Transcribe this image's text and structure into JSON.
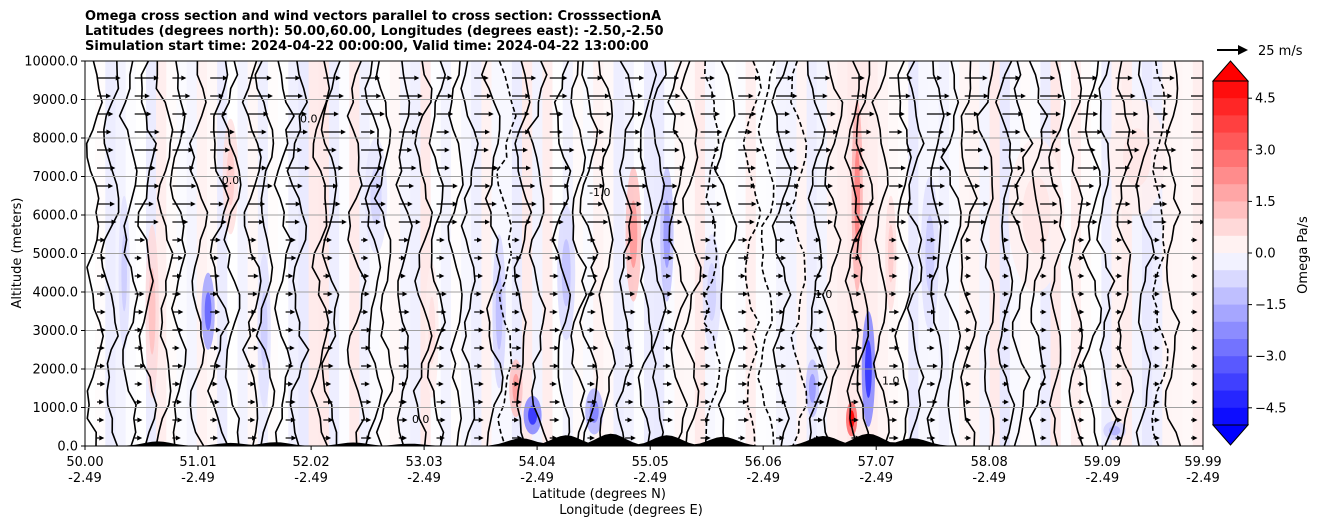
{
  "title": {
    "line1": "Omega cross section and wind vectors parallel to cross section: CrosssectionA",
    "line2": "Latitudes (degrees north): 50.00,60.00, Longitudes (degrees east): -2.50,-2.50",
    "line3": "Simulation start time: 2024-04-22 00:00:00, Valid time: 2024-04-22 13:00:00"
  },
  "wind_key_label": "25 m/s",
  "chart_data": {
    "type": "contour",
    "title": "Omega cross section and wind vectors parallel to cross section: CrosssectionA",
    "xlabel_lat": "Latitude (degrees N)",
    "xlabel_lon": "Longitude (degrees E)",
    "ylabel": "Altitude (meters)",
    "xlim": [
      50.0,
      59.99
    ],
    "ylim": [
      0,
      10000
    ],
    "x_ticks": [
      {
        "lat": "50.00",
        "lon": "-2.49",
        "value": 50.0
      },
      {
        "lat": "51.01",
        "lon": "-2.49",
        "value": 51.01
      },
      {
        "lat": "52.02",
        "lon": "-2.49",
        "value": 52.02
      },
      {
        "lat": "53.03",
        "lon": "-2.49",
        "value": 53.03
      },
      {
        "lat": "54.04",
        "lon": "-2.49",
        "value": 54.04
      },
      {
        "lat": "55.05",
        "lon": "-2.49",
        "value": 55.05
      },
      {
        "lat": "56.06",
        "lon": "-2.49",
        "value": 56.06
      },
      {
        "lat": "57.07",
        "lon": "-2.49",
        "value": 57.07
      },
      {
        "lat": "58.08",
        "lon": "-2.49",
        "value": 58.08
      },
      {
        "lat": "59.09",
        "lon": "-2.49",
        "value": 59.09
      },
      {
        "lat": "59.99",
        "lon": "-2.49",
        "value": 59.99
      }
    ],
    "y_ticks": [
      "0.0",
      "1000.0",
      "2000.0",
      "3000.0",
      "4000.0",
      "5000.0",
      "6000.0",
      "7000.0",
      "8000.0",
      "9000.0",
      "10000.0"
    ],
    "grid": "horizontal",
    "colorbar": {
      "label": "Omega Pa/s",
      "range": [
        -5.0,
        5.0
      ],
      "step": 0.5,
      "ticks": [
        "4.5",
        "3.0",
        "1.5",
        "0.0",
        "−1.5",
        "−3.0",
        "−4.5"
      ],
      "cmap": "bwr",
      "extend": "both"
    },
    "contour_levels": [
      -1.0,
      0.0,
      1.0
    ],
    "contour_labels": [
      {
        "text": "0.0",
        "x": 52.0,
        "y": 8400
      },
      {
        "text": "-1.0",
        "x": 54.6,
        "y": 6500
      },
      {
        "text": "1.0",
        "x": 56.6,
        "y": 3850
      },
      {
        "text": "1.0",
        "x": 57.2,
        "y": 1600
      },
      {
        "text": "0.0",
        "x": 53.0,
        "y": 600
      },
      {
        "text": "0.0",
        "x": 51.3,
        "y": 6800
      }
    ],
    "omega_features": [
      {
        "lat": 50.35,
        "z": 4500,
        "w": 0.05,
        "h": 4000,
        "value": -1.0
      },
      {
        "lat": 50.6,
        "z": 3500,
        "w": 0.06,
        "h": 4500,
        "value": 1.2
      },
      {
        "lat": 51.1,
        "z": 3500,
        "w": 0.06,
        "h": 2000,
        "value": -3.0
      },
      {
        "lat": 51.3,
        "z": 7000,
        "w": 0.07,
        "h": 3000,
        "value": 1.0
      },
      {
        "lat": 51.6,
        "z": 3000,
        "w": 0.06,
        "h": 4000,
        "value": -1.0
      },
      {
        "lat": 52.6,
        "z": 6500,
        "w": 0.1,
        "h": 3000,
        "value": -0.8
      },
      {
        "lat": 53.1,
        "z": 3000,
        "w": 0.06,
        "h": 3500,
        "value": 0.6
      },
      {
        "lat": 53.7,
        "z": 3500,
        "w": 0.06,
        "h": 4000,
        "value": -1.3
      },
      {
        "lat": 53.85,
        "z": 1500,
        "w": 0.06,
        "h": 1500,
        "value": 2.0
      },
      {
        "lat": 54.0,
        "z": 800,
        "w": 0.08,
        "h": 1000,
        "value": -4.0
      },
      {
        "lat": 54.3,
        "z": 4500,
        "w": 0.08,
        "h": 3500,
        "value": -1.2
      },
      {
        "lat": 54.55,
        "z": 900,
        "w": 0.08,
        "h": 1200,
        "value": -2.5
      },
      {
        "lat": 54.9,
        "z": 5500,
        "w": 0.07,
        "h": 3500,
        "value": 2.0
      },
      {
        "lat": 55.2,
        "z": 5500,
        "w": 0.06,
        "h": 3500,
        "value": -2.0
      },
      {
        "lat": 55.6,
        "z": 4000,
        "w": 0.08,
        "h": 3000,
        "value": -0.9
      },
      {
        "lat": 56.5,
        "z": 1500,
        "w": 0.06,
        "h": 1500,
        "value": -2.0
      },
      {
        "lat": 56.9,
        "z": 6500,
        "w": 0.05,
        "h": 5000,
        "value": 2.5
      },
      {
        "lat": 57.0,
        "z": 2000,
        "w": 0.06,
        "h": 3000,
        "value": -4.0
      },
      {
        "lat": 56.85,
        "z": 700,
        "w": 0.05,
        "h": 900,
        "value": 5.0
      },
      {
        "lat": 57.2,
        "z": 5000,
        "w": 0.05,
        "h": 3000,
        "value": 1.0
      },
      {
        "lat": 57.55,
        "z": 5000,
        "w": 0.08,
        "h": 4000,
        "value": -1.0
      },
      {
        "lat": 58.5,
        "z": 6000,
        "w": 0.25,
        "h": 4000,
        "value": 0.5
      },
      {
        "lat": 59.4,
        "z": 7500,
        "w": 0.25,
        "h": 3000,
        "value": 0.5
      },
      {
        "lat": 59.2,
        "z": 400,
        "w": 0.1,
        "h": 500,
        "value": -1.5
      }
    ],
    "terrain_peaks": [
      {
        "lat": 50.65,
        "height": 120
      },
      {
        "lat": 51.3,
        "height": 80
      },
      {
        "lat": 51.7,
        "height": 100
      },
      {
        "lat": 52.4,
        "height": 90
      },
      {
        "lat": 52.9,
        "height": 60
      },
      {
        "lat": 53.9,
        "height": 200
      },
      {
        "lat": 54.3,
        "height": 280
      },
      {
        "lat": 54.7,
        "height": 320
      },
      {
        "lat": 55.2,
        "height": 280
      },
      {
        "lat": 55.7,
        "height": 240
      },
      {
        "lat": 56.6,
        "height": 260
      },
      {
        "lat": 57.0,
        "height": 320
      },
      {
        "lat": 57.4,
        "height": 200
      }
    ]
  }
}
